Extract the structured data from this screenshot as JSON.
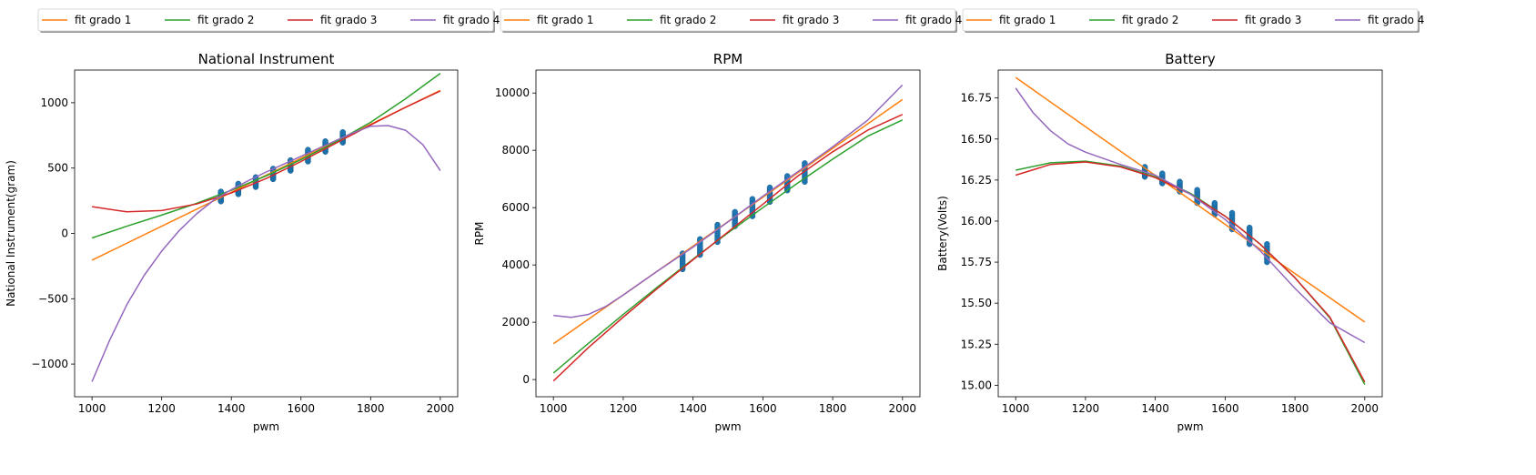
{
  "chart_data": [
    {
      "type": "line",
      "title": "National Instrument",
      "xlabel": "pwm",
      "ylabel": "National Instrument(gram)",
      "xlim": [
        950,
        2050
      ],
      "ylim": [
        1250,
        -1250
      ],
      "xticks": [
        1000,
        1200,
        1400,
        1600,
        1800,
        2000
      ],
      "yticks": [
        -1000,
        -500,
        0,
        500,
        1000
      ],
      "ytick_labels": [
        "−1000",
        "−500",
        "0",
        "500",
        "1000"
      ],
      "legend": {
        "placement": "top",
        "entries": [
          "fit grado 1",
          "fit grado 2",
          "fit grado 3",
          "fit grado 4"
        ]
      },
      "series": [
        {
          "name": "fit grado 1",
          "color": "#ff7f0e",
          "x": [
            1000,
            1250,
            1500,
            1750,
            2000
          ],
          "y": [
            -205,
            120,
            445,
            770,
            1095
          ]
        },
        {
          "name": "fit grado 2",
          "color": "#2ca02c",
          "x": [
            1000,
            1100,
            1200,
            1300,
            1400,
            1500,
            1600,
            1700,
            1800,
            1900,
            2000
          ],
          "y": [
            -35,
            55,
            140,
            230,
            330,
            440,
            565,
            700,
            850,
            1030,
            1225
          ]
        },
        {
          "name": "fit grado 3",
          "color": "#d62728",
          "x": [
            1000,
            1100,
            1200,
            1300,
            1400,
            1500,
            1600,
            1700,
            1800,
            1900,
            2000
          ],
          "y": [
            205,
            165,
            175,
            225,
            310,
            420,
            550,
            690,
            830,
            965,
            1090
          ]
        },
        {
          "name": "fit grado 4",
          "color": "#9467bd",
          "x": [
            1000,
            1050,
            1100,
            1150,
            1200,
            1250,
            1300,
            1350,
            1400,
            1450,
            1500,
            1550,
            1600,
            1650,
            1700,
            1750,
            1800,
            1850,
            1900,
            1950,
            2000
          ],
          "y": [
            -1135,
            -820,
            -545,
            -320,
            -135,
            20,
            150,
            255,
            335,
            405,
            470,
            530,
            590,
            650,
            710,
            770,
            820,
            825,
            790,
            680,
            480
          ]
        }
      ],
      "scatter": {
        "color": "#1f77b4",
        "x": [
          1370,
          1420,
          1470,
          1520,
          1570,
          1620,
          1670,
          1720
        ],
        "y_min": [
          245,
          300,
          355,
          415,
          480,
          550,
          625,
          695
        ],
        "y_max": [
          320,
          380,
          430,
          495,
          560,
          640,
          705,
          775
        ]
      }
    },
    {
      "type": "line",
      "title": "RPM",
      "xlabel": "pwm",
      "ylabel": "RPM",
      "xlim": [
        950,
        2050
      ],
      "ylim": [
        10800,
        -600
      ],
      "xticks": [
        1000,
        1200,
        1400,
        1600,
        1800,
        2000
      ],
      "yticks": [
        0,
        2000,
        4000,
        6000,
        8000,
        10000
      ],
      "ytick_labels": [
        "0",
        "2000",
        "4000",
        "6000",
        "8000",
        "10000"
      ],
      "legend": {
        "placement": "top",
        "entries": [
          "fit grado 1",
          "fit grado 2",
          "fit grado 3",
          "fit grado 4"
        ]
      },
      "series": [
        {
          "name": "fit grado 1",
          "color": "#ff7f0e",
          "x": [
            1000,
            1250,
            1500,
            1750,
            2000
          ],
          "y": [
            1250,
            3380,
            5510,
            7640,
            9770
          ]
        },
        {
          "name": "fit grado 2",
          "color": "#2ca02c",
          "x": [
            1000,
            1100,
            1200,
            1300,
            1400,
            1500,
            1600,
            1700,
            1800,
            1900,
            2000
          ],
          "y": [
            230,
            1260,
            2270,
            3250,
            4200,
            5120,
            6000,
            6860,
            7690,
            8490,
            9060
          ]
        },
        {
          "name": "fit grado 3",
          "color": "#d62728",
          "x": [
            1000,
            1100,
            1200,
            1300,
            1400,
            1500,
            1600,
            1700,
            1800,
            1900,
            2000
          ],
          "y": [
            -50,
            1110,
            2180,
            3200,
            4180,
            5150,
            6120,
            7100,
            7950,
            8700,
            9250
          ]
        },
        {
          "name": "fit grado 4",
          "color": "#9467bd",
          "x": [
            1000,
            1050,
            1100,
            1150,
            1200,
            1250,
            1300,
            1400,
            1500,
            1600,
            1700,
            1800,
            1900,
            2000
          ],
          "y": [
            2240,
            2170,
            2270,
            2550,
            2950,
            3380,
            3800,
            4620,
            5500,
            6400,
            7250,
            8120,
            9050,
            10280
          ]
        }
      ],
      "scatter": {
        "color": "#1f77b4",
        "x": [
          1370,
          1420,
          1470,
          1520,
          1570,
          1620,
          1670,
          1720
        ],
        "y_min": [
          3850,
          4350,
          4800,
          5350,
          5700,
          6200,
          6600,
          6900
        ],
        "y_max": [
          4400,
          4900,
          5400,
          5850,
          6300,
          6700,
          7100,
          7550
        ]
      }
    },
    {
      "type": "line",
      "title": "Battery",
      "xlabel": "pwm",
      "ylabel": "Battery(Volts)",
      "xlim": [
        950,
        2050
      ],
      "ylim": [
        16.92,
        14.93
      ],
      "xticks": [
        1000,
        1200,
        1400,
        1600,
        1800,
        2000
      ],
      "yticks": [
        15.0,
        15.25,
        15.5,
        15.75,
        16.0,
        16.25,
        16.5,
        16.75
      ],
      "ytick_labels": [
        "15.00",
        "15.25",
        "15.50",
        "15.75",
        "16.00",
        "16.25",
        "16.50",
        "16.75"
      ],
      "legend": {
        "placement": "top",
        "entries": [
          "fit grado 1",
          "fit grado 2",
          "fit grado 3",
          "fit grado 4"
        ]
      },
      "series": [
        {
          "name": "fit grado 1",
          "color": "#ff7f0e",
          "x": [
            1000,
            1250,
            1500,
            1750,
            2000
          ],
          "y": [
            16.875,
            16.5,
            16.13,
            15.755,
            15.385
          ]
        },
        {
          "name": "fit grado 2",
          "color": "#2ca02c",
          "x": [
            1000,
            1100,
            1200,
            1300,
            1400,
            1500,
            1600,
            1700,
            1800,
            1900,
            2000
          ],
          "y": [
            16.31,
            16.355,
            16.365,
            16.335,
            16.27,
            16.17,
            16.03,
            15.86,
            15.655,
            15.41,
            15.005
          ]
        },
        {
          "name": "fit grado 3",
          "color": "#d62728",
          "x": [
            1000,
            1100,
            1200,
            1300,
            1400,
            1500,
            1600,
            1700,
            1800,
            1900,
            2000
          ],
          "y": [
            16.28,
            16.345,
            16.36,
            16.33,
            16.265,
            16.165,
            16.03,
            15.86,
            15.655,
            15.415,
            15.02
          ]
        },
        {
          "name": "fit grado 4",
          "color": "#9467bd",
          "x": [
            1000,
            1050,
            1100,
            1150,
            1200,
            1300,
            1400,
            1500,
            1600,
            1700,
            1800,
            1900,
            2000
          ],
          "y": [
            16.81,
            16.66,
            16.55,
            16.47,
            16.42,
            16.345,
            16.28,
            16.165,
            16.01,
            15.82,
            15.59,
            15.38,
            15.26
          ]
        }
      ],
      "scatter": {
        "color": "#1f77b4",
        "x": [
          1370,
          1420,
          1470,
          1520,
          1570,
          1620,
          1670,
          1720
        ],
        "y_min": [
          16.27,
          16.23,
          16.18,
          16.11,
          16.04,
          15.95,
          15.86,
          15.75
        ],
        "y_max": [
          16.33,
          16.29,
          16.24,
          16.19,
          16.11,
          16.05,
          15.96,
          15.86
        ]
      }
    }
  ]
}
